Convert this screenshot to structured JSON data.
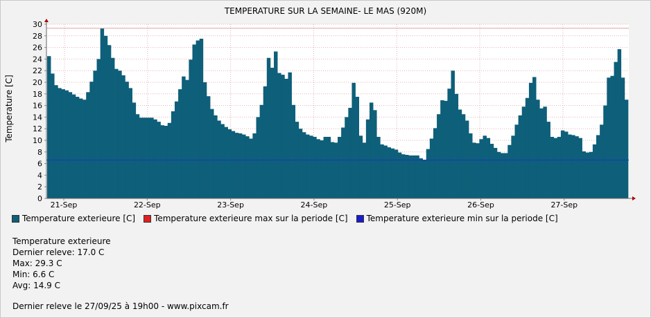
{
  "title": "TEMPERATURE SUR LA SEMAINE- LE MAS (920M)",
  "colors": {
    "bar": "#0e5f79",
    "max_line": "#e0a0a0",
    "min_line": "#1a33c8",
    "background": "#f2f2f2",
    "plot_bg": "#ffffff"
  },
  "legend": [
    {
      "label": "Temperature exterieure [C]",
      "color": "#0e5f79"
    },
    {
      "label": "Temperature exterieure max sur la periode [C]",
      "color": "#e02020"
    },
    {
      "label": "Temperature exterieure min sur la periode [C]",
      "color": "#1a1ad0"
    }
  ],
  "stats": {
    "heading": "Temperature exterieure",
    "last": "Dernier releve: 17.0 C",
    "max": "Max: 29.3 C",
    "min": "Min: 6.6 C",
    "avg": "Avg: 14.9 C"
  },
  "footer": "Dernier releve le 27/09/25 à 19h00 - www.pixcam.fr",
  "chart_data": {
    "type": "bar",
    "ylabel": "Temperature [C]",
    "ylim": [
      0,
      30
    ],
    "yticks": [
      0,
      2,
      4,
      6,
      8,
      10,
      12,
      14,
      16,
      18,
      20,
      22,
      24,
      26,
      28,
      30
    ],
    "x_tick_labels": [
      "21-Sep",
      "22-Sep",
      "23-Sep",
      "24-Sep",
      "25-Sep",
      "26-Sep",
      "27-Sep"
    ],
    "grid": true,
    "max_line": 29.3,
    "min_line": 6.6,
    "series": [
      {
        "name": "Temperature exterieure [C]",
        "values": [
          24.5,
          21.5,
          19.5,
          19.0,
          18.8,
          18.6,
          18.3,
          17.9,
          17.5,
          17.2,
          17.0,
          18.3,
          20.1,
          22.0,
          24.0,
          29.3,
          28.0,
          26.4,
          24.2,
          22.3,
          22.0,
          21.2,
          20.1,
          19.0,
          16.5,
          14.5,
          13.9,
          13.9,
          13.9,
          13.9,
          13.6,
          13.2,
          12.6,
          12.5,
          13.0,
          15.0,
          16.7,
          18.8,
          21.0,
          20.4,
          23.9,
          26.5,
          27.2,
          27.5,
          20.0,
          17.6,
          15.4,
          14.3,
          13.4,
          12.8,
          12.3,
          11.9,
          11.6,
          11.3,
          11.2,
          11.0,
          10.7,
          10.3,
          11.2,
          14.0,
          16.1,
          19.3,
          24.2,
          22.5,
          25.3,
          21.6,
          21.3,
          20.6,
          21.7,
          16.1,
          13.2,
          12.0,
          11.4,
          11.0,
          10.8,
          10.6,
          10.2,
          10.0,
          10.6,
          10.6,
          9.7,
          9.6,
          10.6,
          12.2,
          14.0,
          15.6,
          19.9,
          17.5,
          10.8,
          9.6,
          13.6,
          16.5,
          15.2,
          10.6,
          9.3,
          9.1,
          8.8,
          8.6,
          8.4,
          7.9,
          7.6,
          7.5,
          7.4,
          7.4,
          7.4,
          6.9,
          6.6,
          8.5,
          10.3,
          12.1,
          14.5,
          16.9,
          16.8,
          18.9,
          22.0,
          18.0,
          15.3,
          14.5,
          13.4,
          11.2,
          9.6,
          9.5,
          10.2,
          10.8,
          10.4,
          9.4,
          8.7,
          8.0,
          7.8,
          7.8,
          9.2,
          10.8,
          12.7,
          14.3,
          15.8,
          17.3,
          19.9,
          20.9,
          17.0,
          15.5,
          15.8,
          13.2,
          10.6,
          10.4,
          10.6,
          11.7,
          11.5,
          11.0,
          10.9,
          10.7,
          10.4,
          8.1,
          7.9,
          8.0,
          9.3,
          10.9,
          12.7,
          16.0,
          20.8,
          21.1,
          23.5,
          25.7,
          20.8,
          17.0
        ]
      }
    ]
  }
}
